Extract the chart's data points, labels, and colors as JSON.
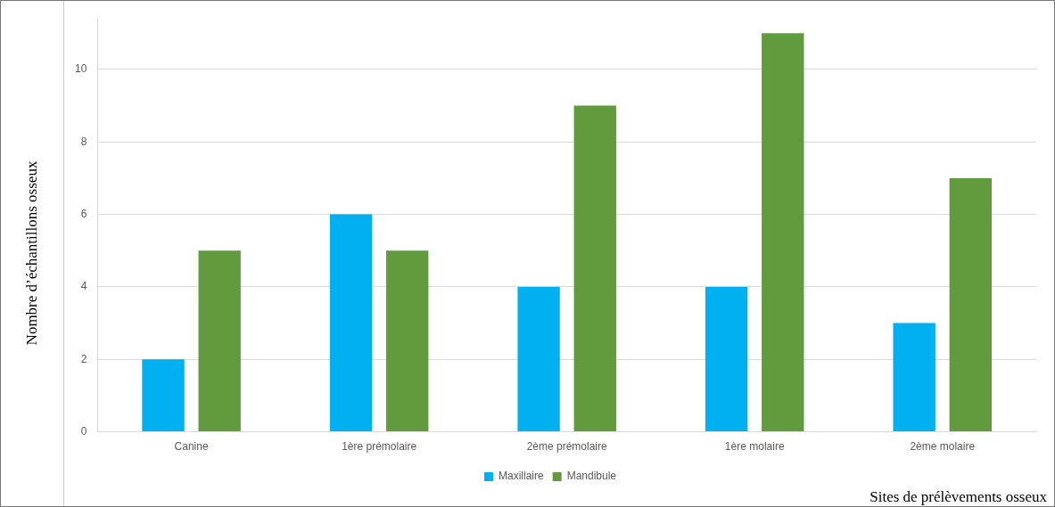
{
  "chart_data": {
    "type": "bar",
    "xlabel": "Sites de prélèvements osseux",
    "ylabel": "Nombre d’échantillons osseux",
    "categories": [
      "Canine",
      "1ère prémolaire",
      "2ème prémolaire",
      "1ère molaire",
      "2ème molaire"
    ],
    "series": [
      {
        "name": "Maxillaire",
        "color": "#00b0f0",
        "values": [
          2,
          6,
          4,
          4,
          3
        ]
      },
      {
        "name": "Mandibule",
        "color": "#629a3e",
        "values": [
          5,
          5,
          9,
          11,
          7
        ]
      }
    ],
    "ylim": [
      0,
      11.4
    ],
    "yticks": [
      0,
      2,
      4,
      6,
      8,
      10
    ],
    "grid": "y",
    "legend": "bottom"
  }
}
